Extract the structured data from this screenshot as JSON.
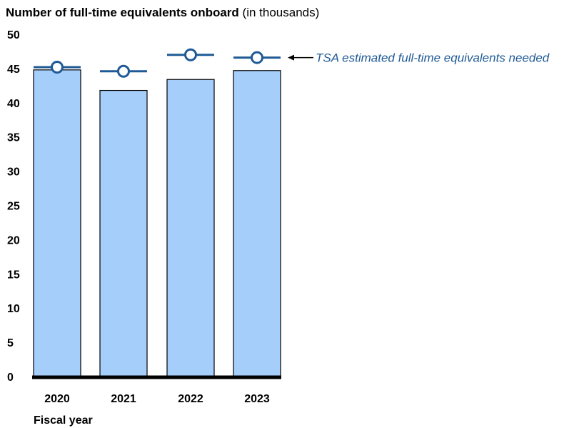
{
  "title": {
    "bold": "Number of full-time equivalents onboard",
    "normal": " (in thousands)"
  },
  "xlabel": "Fiscal year",
  "legend_label": "TSA estimated full-time equivalents needed",
  "colors": {
    "bar_fill": "#a6cefa",
    "bar_stroke": "#000000",
    "marker": "#1f5a96",
    "legend_text": "#1f5a96"
  },
  "chart_data": {
    "type": "bar",
    "categories": [
      "2020",
      "2021",
      "2022",
      "2023"
    ],
    "series": [
      {
        "values": [
          44.8,
          41.8,
          43.4,
          44.7
        ]
      },
      {
        "name": "TSA estimated full-time equivalents needed",
        "values": [
          45.2,
          44.6,
          47.0,
          46.6
        ]
      }
    ],
    "yticks": [
      0,
      5,
      10,
      15,
      20,
      25,
      30,
      35,
      40,
      45,
      50
    ],
    "ylim": [
      0,
      50
    ],
    "title": "Number of full-time equivalents onboard (in thousands)",
    "xlabel": "Fiscal year",
    "ylabel": "",
    "grid": false,
    "legend": "right-of-chart"
  }
}
